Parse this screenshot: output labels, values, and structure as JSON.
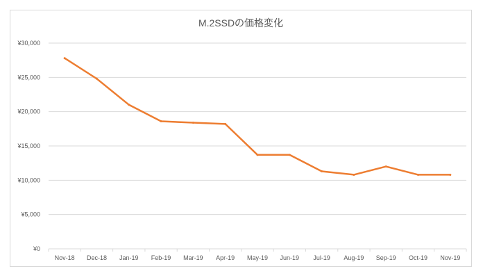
{
  "chart_data": {
    "type": "line",
    "title": "M.2SSDの価格変化",
    "categories": [
      "Nov-18",
      "Dec-18",
      "Jan-19",
      "Feb-19",
      "Mar-19",
      "Apr-19",
      "May-19",
      "Jun-19",
      "Jul-19",
      "Aug-19",
      "Sep-19",
      "Oct-19",
      "Nov-19"
    ],
    "series": [
      {
        "values": [
          27800,
          24800,
          21000,
          18600,
          18400,
          18200,
          13700,
          13700,
          11300,
          10800,
          12000,
          10800,
          10800
        ]
      }
    ],
    "y_ticks": [
      "¥0",
      "¥5,000",
      "¥10,000",
      "¥15,000",
      "¥20,000",
      "¥25,000",
      "¥30,000"
    ],
    "ylim": [
      0,
      30000
    ],
    "grid": true,
    "legend": "none",
    "colors": {
      "line": "#ED7D31",
      "grid": "#d9d9d9",
      "text": "#595959"
    }
  }
}
